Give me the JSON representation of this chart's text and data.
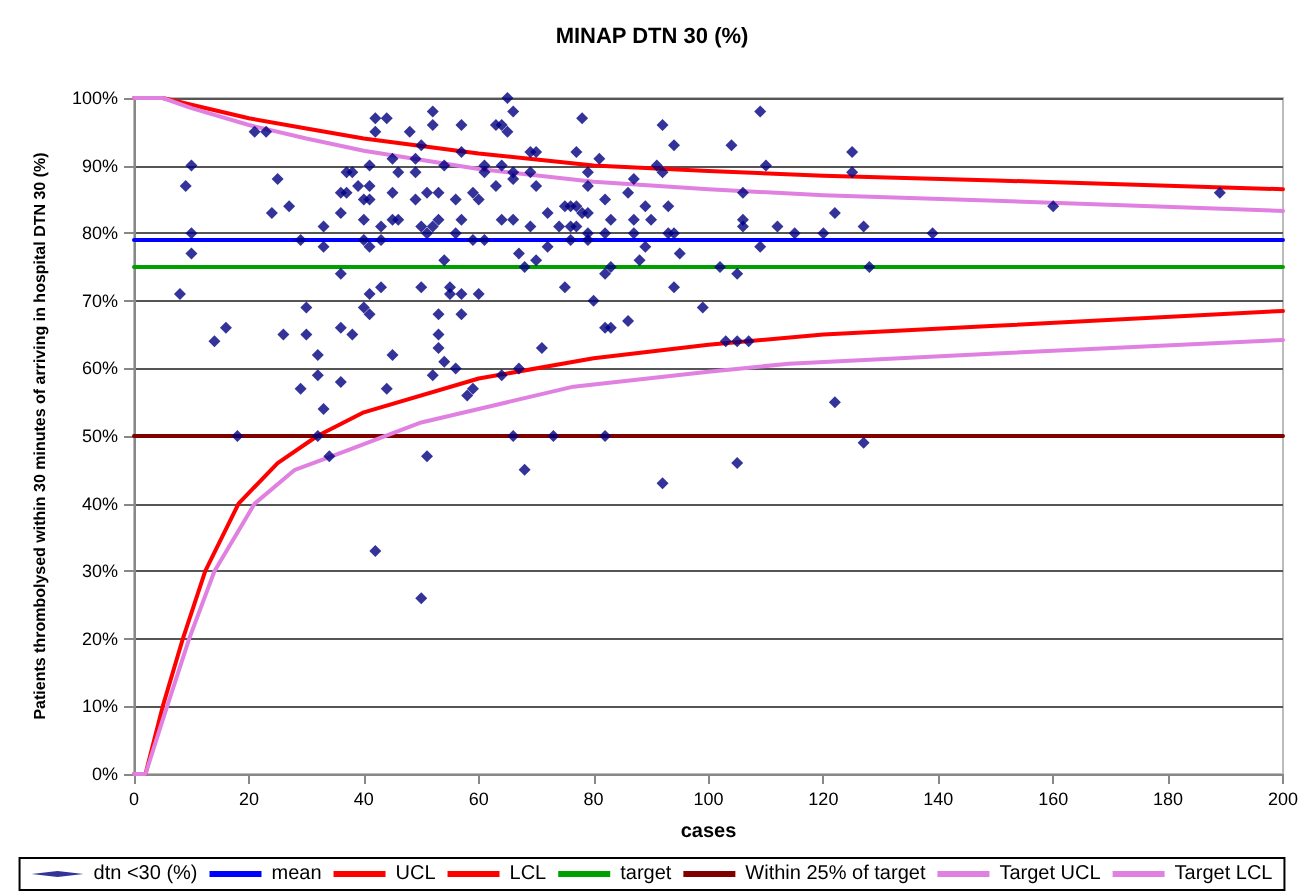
{
  "chart_data": {
    "type": "scatter",
    "title": "MINAP DTN 30 (%)",
    "xlabel": "cases",
    "ylabel": "Patients thrombolysed within 30 minutes of arriving in hospital DTN 30 (%)",
    "xlim": [
      0,
      200
    ],
    "xticks": [
      0,
      20,
      40,
      60,
      80,
      100,
      120,
      140,
      160,
      180,
      200
    ],
    "ylim": [
      0,
      100
    ],
    "yticks": [
      {
        "value": 0,
        "label": "0%"
      },
      {
        "value": 10,
        "label": "10%"
      },
      {
        "value": 20,
        "label": "20%"
      },
      {
        "value": 30,
        "label": "30%"
      },
      {
        "value": 40,
        "label": "40%"
      },
      {
        "value": 50,
        "label": "50%"
      },
      {
        "value": 60,
        "label": "60%"
      },
      {
        "value": 70,
        "label": "70%"
      },
      {
        "value": 80,
        "label": "80%"
      },
      {
        "value": 90,
        "label": "90%"
      },
      {
        "value": 100,
        "label": "100%"
      }
    ],
    "grid": "y",
    "legend": "bottom",
    "series": [
      {
        "name": "dtn <30 (%)",
        "marker": "diamond",
        "color": "#000080",
        "x": [
          9,
          10,
          10,
          10,
          8,
          21,
          23,
          25,
          27,
          24,
          29,
          33,
          33,
          36,
          36,
          37,
          37,
          38,
          36,
          30,
          26,
          30,
          14,
          16,
          32,
          32,
          29,
          33,
          36,
          36,
          38,
          18,
          32,
          34,
          42,
          44,
          52,
          52,
          42,
          48,
          50,
          57,
          57,
          63,
          64,
          65,
          66,
          65,
          45,
          49,
          54,
          61,
          69,
          70,
          41,
          46,
          49,
          61,
          64,
          66,
          69,
          39,
          41,
          40,
          41,
          45,
          49,
          51,
          53,
          56,
          59,
          60,
          63,
          66,
          70,
          40,
          43,
          45,
          46,
          50,
          53,
          52,
          57,
          51,
          56,
          64,
          66,
          69,
          72,
          75,
          40,
          43,
          59,
          61,
          67,
          70,
          72,
          41,
          54,
          68,
          43,
          41,
          50,
          55,
          57,
          55,
          60,
          75,
          40,
          41,
          53,
          57,
          53,
          53,
          52,
          54,
          56,
          45,
          58,
          59,
          44,
          64,
          67,
          71,
          66,
          68,
          73,
          51,
          42,
          50,
          78,
          92,
          109,
          94,
          104,
          77,
          81,
          91,
          110,
          79,
          87,
          92,
          79,
          106,
          82,
          86,
          89,
          93,
          76,
          77,
          78,
          79,
          74,
          76,
          77,
          79,
          82,
          83,
          87,
          90,
          93,
          94,
          106,
          106,
          112,
          87,
          109,
          79,
          76,
          89,
          95,
          83,
          88,
          82,
          102,
          105,
          94,
          80,
          99,
          82,
          83,
          86,
          103,
          105,
          107,
          82,
          92,
          105,
          125,
          125,
          122,
          115,
          120,
          127,
          139,
          160,
          189,
          128,
          122,
          127
        ],
        "values": [
          87,
          90,
          80,
          77,
          71,
          95,
          95,
          88,
          84,
          83,
          79,
          81,
          78,
          83,
          86,
          86,
          89,
          89,
          74,
          69,
          65,
          65,
          64,
          66,
          62,
          59,
          57,
          54,
          58,
          66,
          65,
          50,
          50,
          47,
          97,
          97,
          98,
          96,
          95,
          95,
          93,
          96,
          92,
          96,
          96,
          100,
          98,
          95,
          91,
          91,
          90,
          90,
          92,
          92,
          90,
          89,
          89,
          89,
          90,
          89,
          89,
          87,
          87,
          85,
          85,
          86,
          85,
          86,
          86,
          85,
          86,
          85,
          87,
          88,
          87,
          82,
          81,
          82,
          82,
          81,
          82,
          81,
          82,
          80,
          80,
          82,
          82,
          81,
          83,
          84,
          79,
          79,
          79,
          79,
          77,
          76,
          78,
          78,
          76,
          75,
          72,
          71,
          72,
          72,
          71,
          71,
          71,
          72,
          69,
          68,
          68,
          68,
          65,
          63,
          59,
          61,
          60,
          62,
          56,
          57,
          57,
          59,
          60,
          63,
          50,
          45,
          50,
          47,
          33,
          26,
          97,
          96,
          98,
          93,
          93,
          92,
          91,
          90,
          90,
          89,
          88,
          89,
          87,
          86,
          85,
          86,
          84,
          84,
          84,
          84,
          83,
          83,
          81,
          81,
          81,
          80,
          80,
          82,
          82,
          82,
          80,
          80,
          82,
          81,
          81,
          80,
          78,
          79,
          79,
          78,
          77,
          75,
          76,
          74,
          75,
          74,
          72,
          70,
          69,
          66,
          66,
          67,
          64,
          64,
          64,
          50,
          43,
          46,
          92,
          89,
          83,
          80,
          80,
          81,
          80,
          84,
          86,
          75,
          55,
          49
        ]
      },
      {
        "name": "mean",
        "type": "line",
        "marker": "none",
        "color": "#0000ff",
        "x": [
          0,
          200
        ],
        "values": [
          79,
          79
        ]
      },
      {
        "name": "UCL",
        "type": "line",
        "marker": "none",
        "color": "#ff0000",
        "x": [
          0,
          5,
          10,
          20,
          30,
          40,
          60,
          80,
          100,
          120,
          150,
          200
        ],
        "values": [
          100,
          100,
          99,
          97,
          95.5,
          94,
          91.8,
          90,
          89.2,
          88.5,
          87.8,
          86.5
        ]
      },
      {
        "name": "LCL",
        "type": "line",
        "marker": "none",
        "color": "#ff0000",
        "x": [
          0,
          2,
          5,
          8.5,
          12.4,
          18.2,
          25,
          31.9,
          40,
          60,
          80,
          100,
          120,
          150,
          200
        ],
        "values": [
          0,
          0,
          10,
          20,
          30,
          40,
          46,
          50,
          53.5,
          58.5,
          61.5,
          63.5,
          65,
          66.3,
          68.5
        ]
      },
      {
        "name": "target",
        "type": "line",
        "marker": "none",
        "color": "#00a000",
        "x": [
          0,
          200
        ],
        "values": [
          75,
          75
        ]
      },
      {
        "name": "Within 25% of target",
        "type": "line",
        "marker": "none",
        "color": "#800000",
        "x": [
          0,
          200
        ],
        "values": [
          50,
          50
        ]
      },
      {
        "name": "Target UCL",
        "type": "line",
        "marker": "none",
        "color": "#e080e0",
        "x": [
          0,
          5,
          10,
          20,
          30,
          40,
          60,
          80,
          100,
          120,
          150,
          200
        ],
        "values": [
          100,
          100,
          98.5,
          96,
          94,
          92.2,
          89.5,
          87.6,
          86.5,
          85.6,
          84.8,
          83.3
        ]
      },
      {
        "name": "Target LCL",
        "type": "line",
        "marker": "none",
        "color": "#e080e0",
        "x": [
          0,
          2,
          5,
          9.6,
          14,
          21,
          28,
          36,
          50,
          76.5,
          100,
          114,
          150,
          200
        ],
        "values": [
          0,
          0,
          8,
          20,
          30,
          40,
          45,
          47.5,
          52,
          57.3,
          59.5,
          60.7,
          62.2,
          64.2
        ]
      }
    ]
  }
}
